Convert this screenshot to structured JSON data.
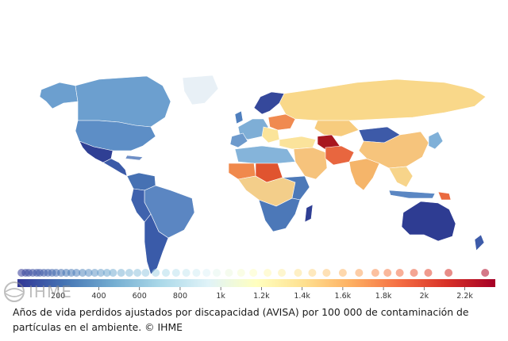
{
  "legend": {
    "ticks": [
      "200",
      "400",
      "600",
      "800",
      "1k",
      "1.2k",
      "1.4k",
      "1.6k",
      "1.8k",
      "2k",
      "2.2k"
    ],
    "tick_values": [
      200,
      400,
      600,
      800,
      1000,
      1200,
      1400,
      1600,
      1800,
      2000,
      2200
    ],
    "range": [
      0,
      2350
    ],
    "colorscale": [
      "#313695",
      "#4575b4",
      "#74add1",
      "#abd9e9",
      "#e0f3f8",
      "#ffffbf",
      "#fee090",
      "#fdae61",
      "#f46d43",
      "#d73027",
      "#a50026"
    ],
    "distribution_dots": [
      20,
      40,
      55,
      75,
      95,
      110,
      130,
      150,
      170,
      190,
      215,
      240,
      265,
      290,
      320,
      350,
      380,
      410,
      440,
      470,
      510,
      550,
      590,
      630,
      680,
      730,
      780,
      830,
      880,
      930,
      980,
      1040,
      1100,
      1160,
      1230,
      1300,
      1380,
      1450,
      1520,
      1600,
      1680,
      1760,
      1820,
      1880,
      1950,
      2020,
      2120,
      2300
    ]
  },
  "logo": {
    "text": "IHME"
  },
  "caption": "Años de vida perdidos ajustados por discapacidad (AVISA) por 100 000 de contaminación de partículas en el ambiente. © IHME"
}
